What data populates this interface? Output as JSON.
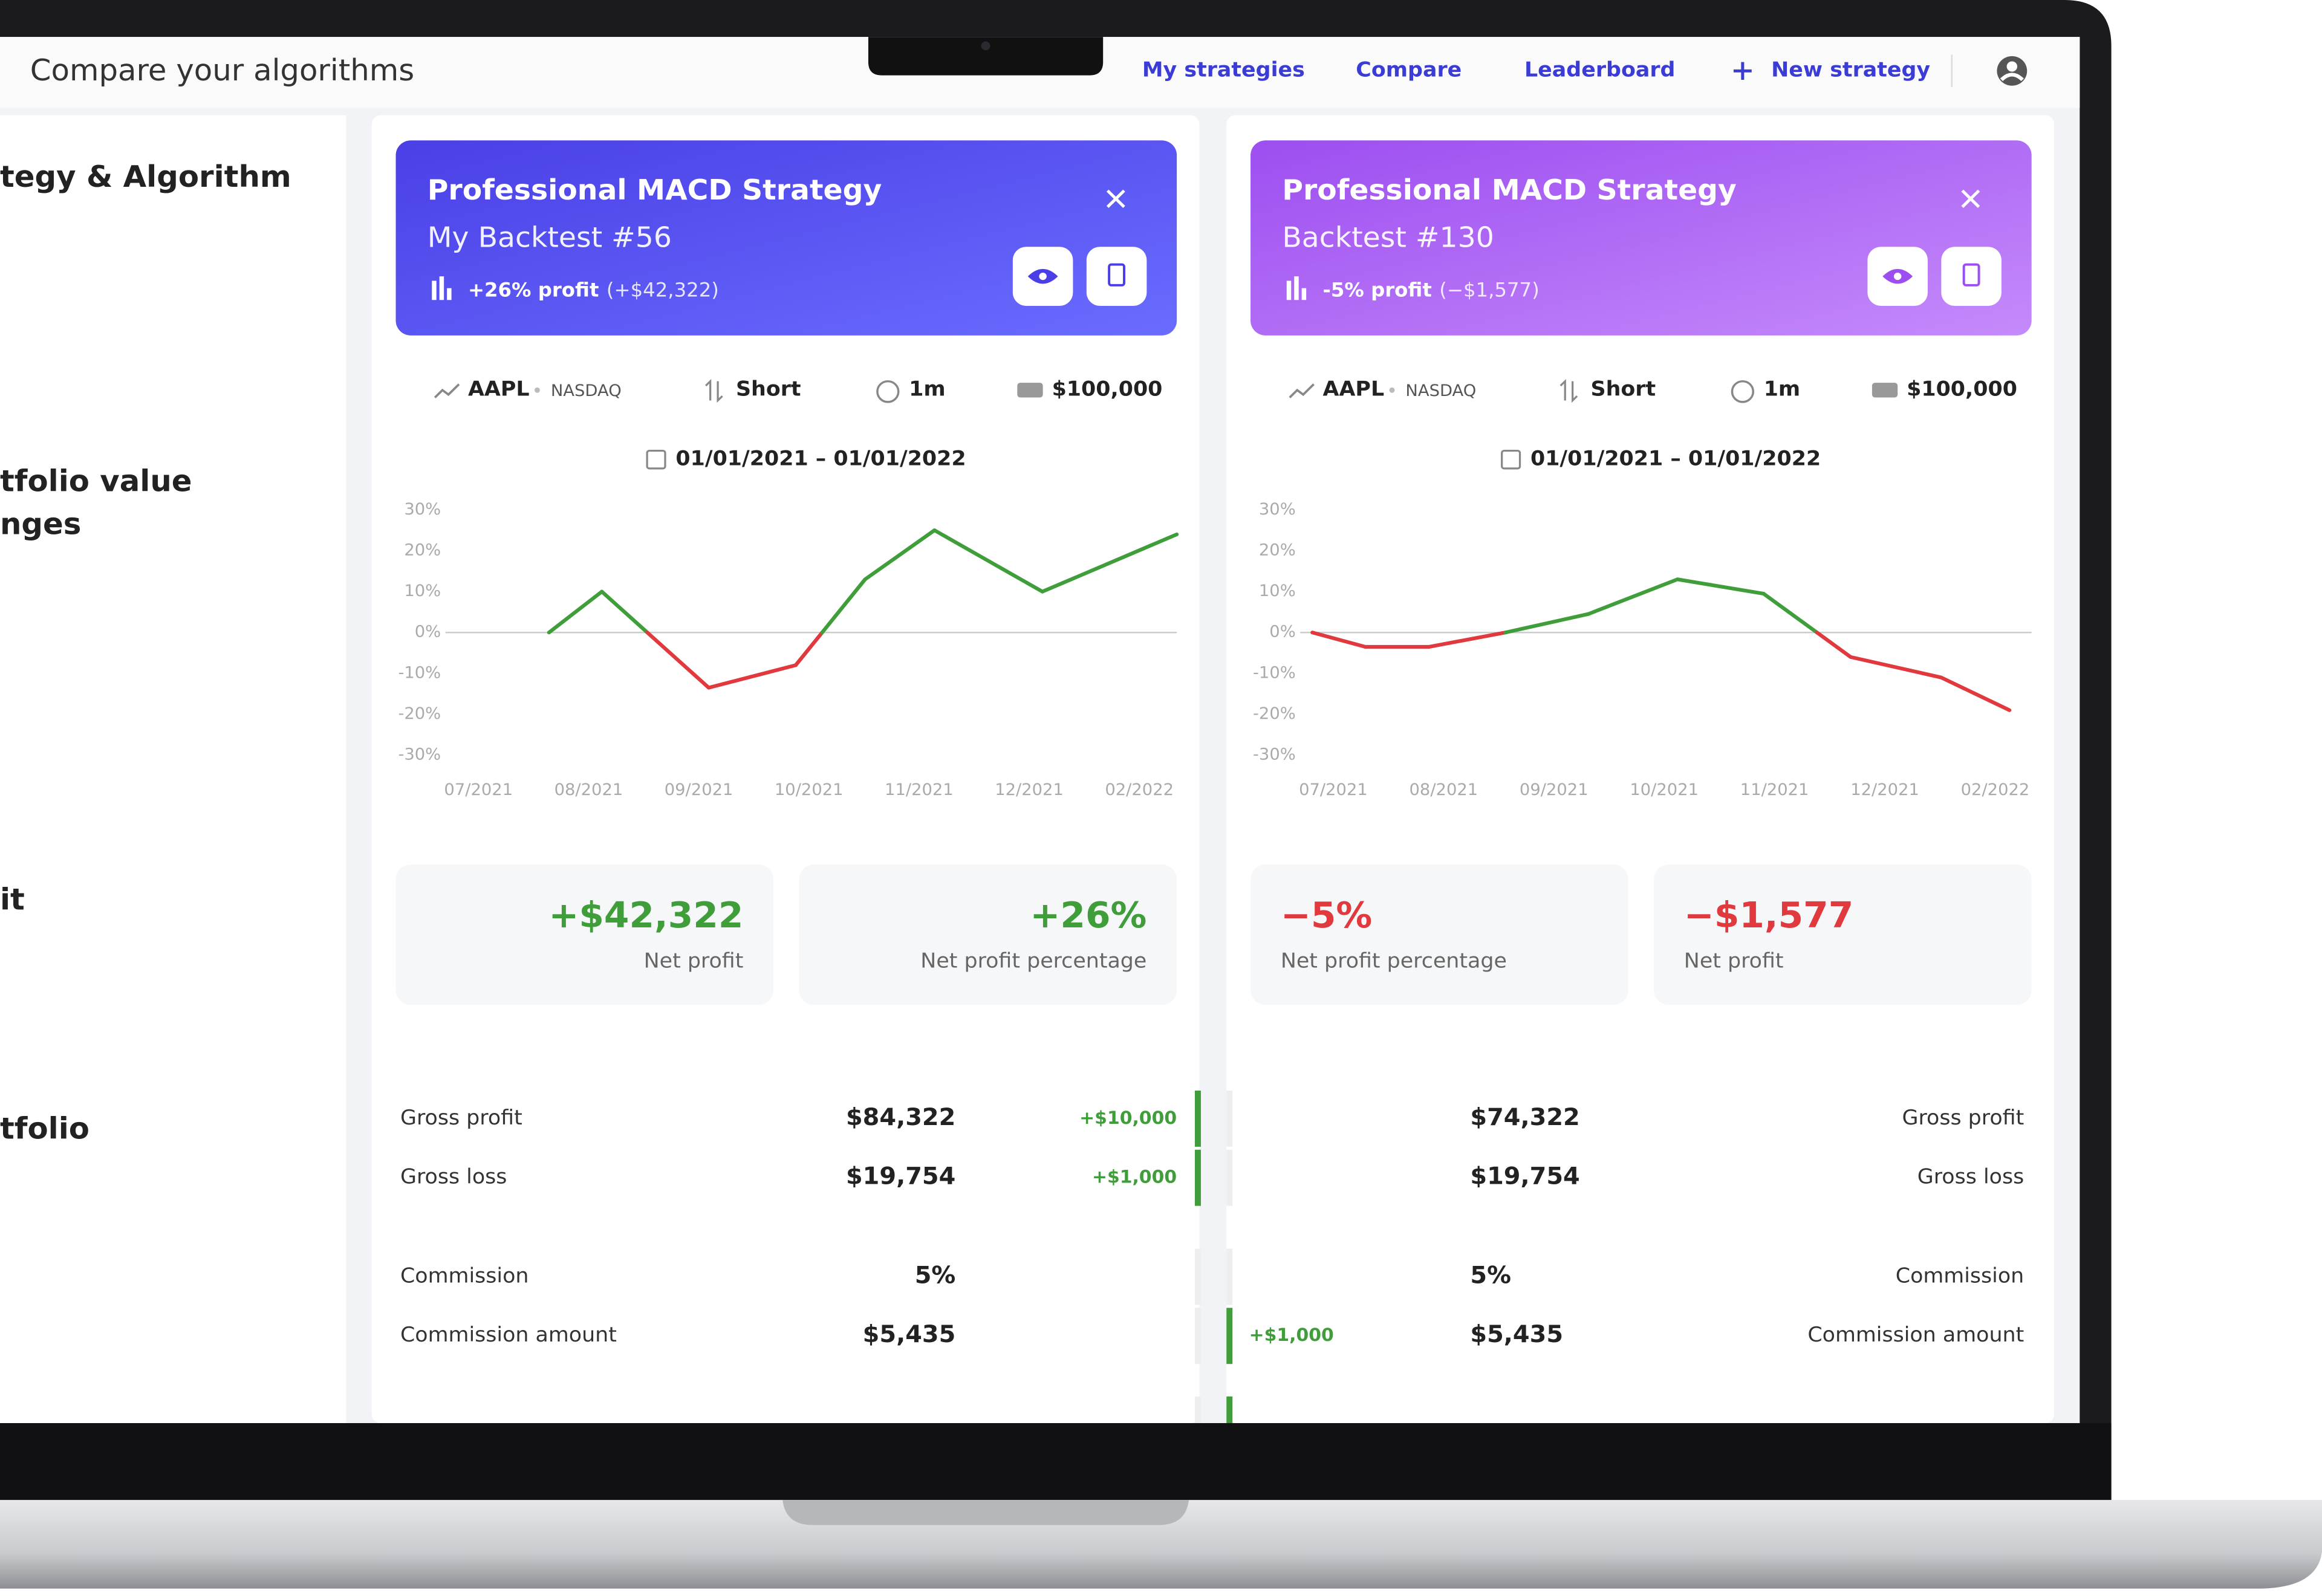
{
  "header": {
    "title": "Compare your algorithms",
    "nav": [
      "My strategies",
      "Compare",
      "Leaderboard",
      "New strategy"
    ]
  },
  "sidebar": {
    "labels": [
      "tegy & Algorithm",
      "tfolio value",
      "nges",
      "it",
      "tfolio"
    ]
  },
  "strategies": [
    {
      "title": "Professional MACD Strategy",
      "subtitle": "My Backtest #56",
      "profit": "+26% profit",
      "profit_amount": "(+$42,322)",
      "symbol": "AAPL",
      "exchange": "NASDAQ",
      "direction": "Short",
      "interval": "1m",
      "capital": "$100,000",
      "date_range": "01/01/2021 – 01/01/2022",
      "stats": [
        {
          "value": "+$42,322",
          "label": "Net profit"
        },
        {
          "value": "+26%",
          "label": "Net profit percentage"
        }
      ],
      "metrics": [
        {
          "label": "Gross profit",
          "value": "$84,322",
          "diff": "+$10,000"
        },
        {
          "label": "Gross loss",
          "value": "$19,754",
          "diff": "+$1,000"
        },
        {
          "label": "Commission",
          "value": "5%"
        },
        {
          "label": "Commission amount",
          "value": "$5,435"
        }
      ]
    },
    {
      "title": "Professional MACD Strategy",
      "subtitle": "Backtest #130",
      "profit": "-5% profit",
      "profit_amount": "(−$1,577)",
      "symbol": "AAPL",
      "exchange": "NASDAQ",
      "direction": "Short",
      "interval": "1m",
      "capital": "$100,000",
      "date_range": "01/01/2021 – 01/01/2022",
      "stats": [
        {
          "value": "−5%",
          "label": "Net profit percentage"
        },
        {
          "value": "−$1,577",
          "label": "Net profit"
        }
      ],
      "metrics": [
        {
          "label": "Gross profit",
          "value": "$74,322"
        },
        {
          "label": "Gross loss",
          "value": "$19,754"
        },
        {
          "label": "Commission",
          "value": "5%"
        },
        {
          "label": "Commission amount",
          "value": "$5,435",
          "diff": "+$1,000"
        }
      ]
    }
  ],
  "chart_data": [
    {
      "type": "line",
      "x": [
        0.64,
        1.12,
        2.09,
        2.88,
        3.51,
        4.14,
        5.12,
        6.34
      ],
      "values": [
        0,
        10,
        -13.5,
        -8,
        13,
        25,
        10,
        24
      ],
      "xlim": [
        -0.3,
        6.34
      ],
      "xticks": [
        {
          "value": 0,
          "label": "07/2021"
        },
        {
          "value": 1,
          "label": "08/2021"
        },
        {
          "value": 2,
          "label": "09/2021"
        },
        {
          "value": 3,
          "label": "10/2021"
        },
        {
          "value": 4,
          "label": "11/2021"
        },
        {
          "value": 5,
          "label": "12/2021"
        },
        {
          "value": 6,
          "label": "02/2022"
        }
      ],
      "ylim": [
        -30,
        30
      ],
      "yticks": [
        {
          "value": 30,
          "label": "30%"
        },
        {
          "value": 20,
          "label": "20%"
        },
        {
          "value": 10,
          "label": "10%"
        },
        {
          "value": 0,
          "label": "0%"
        },
        {
          "value": -10,
          "label": "-10%"
        },
        {
          "value": -20,
          "label": "-20%"
        },
        {
          "value": -30,
          "label": "-30%"
        }
      ],
      "positive_color": "#3f9e3a",
      "negative_color": "#e0393e"
    },
    {
      "type": "line",
      "x": [
        -0.19,
        0.29,
        0.87,
        1.56,
        2.31,
        3.12,
        3.9,
        4.69,
        5.51,
        6.13
      ],
      "values": [
        0,
        -3.5,
        -3.5,
        0,
        4.5,
        13,
        9.5,
        -6,
        -11,
        -19
      ],
      "xlim": [
        -0.3,
        6.33
      ],
      "xticks": [
        {
          "value": 0,
          "label": "07/2021"
        },
        {
          "value": 1,
          "label": "08/2021"
        },
        {
          "value": 2,
          "label": "09/2021"
        },
        {
          "value": 3,
          "label": "10/2021"
        },
        {
          "value": 4,
          "label": "11/2021"
        },
        {
          "value": 5,
          "label": "12/2021"
        },
        {
          "value": 6,
          "label": "02/2022"
        }
      ],
      "ylim": [
        -30,
        30
      ],
      "yticks": [
        {
          "value": 30,
          "label": "30%"
        },
        {
          "value": 20,
          "label": "20%"
        },
        {
          "value": 10,
          "label": "10%"
        },
        {
          "value": 0,
          "label": "0%"
        },
        {
          "value": -10,
          "label": "-10%"
        },
        {
          "value": -20,
          "label": "-20%"
        },
        {
          "value": -30,
          "label": "-30%"
        }
      ],
      "positive_color": "#3f9e3a",
      "negative_color": "#e0393e"
    }
  ]
}
